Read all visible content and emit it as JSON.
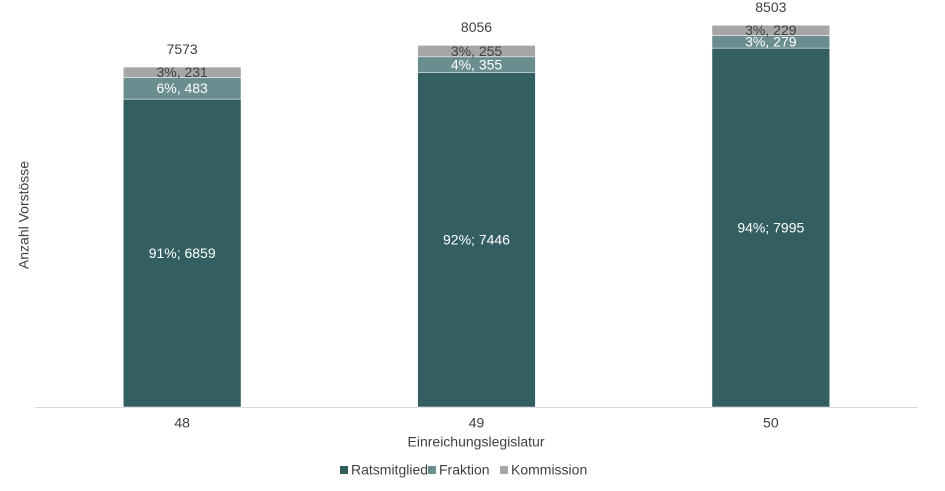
{
  "chart_data": {
    "type": "stacked-bar",
    "x_label": "Einreichungslegislatur",
    "y_label": "Anzahl Vorstösse",
    "categories": [
      "48",
      "49",
      "50"
    ],
    "series": [
      {
        "name": "Ratsmitglied",
        "color": "#335f63",
        "values": [
          6859,
          7446,
          7995
        ],
        "value_labels": [
          "91%; 6859",
          "92%; 7446",
          "94%; 7995"
        ]
      },
      {
        "name": "Fraktion",
        "color": "#6a8d8f",
        "values": [
          483,
          355,
          279
        ],
        "value_labels": [
          "6%, 483",
          "4%, 355",
          "3%, 279"
        ]
      },
      {
        "name": "Kommission",
        "color": "#a6a6a6",
        "values": [
          231,
          255,
          229
        ],
        "value_labels": [
          "3%, 231",
          "3%, 255",
          "3%, 229"
        ]
      }
    ],
    "totals": [
      7573,
      8056,
      8503
    ],
    "ylim": [
      0,
      9000
    ],
    "legend": "bottom"
  }
}
